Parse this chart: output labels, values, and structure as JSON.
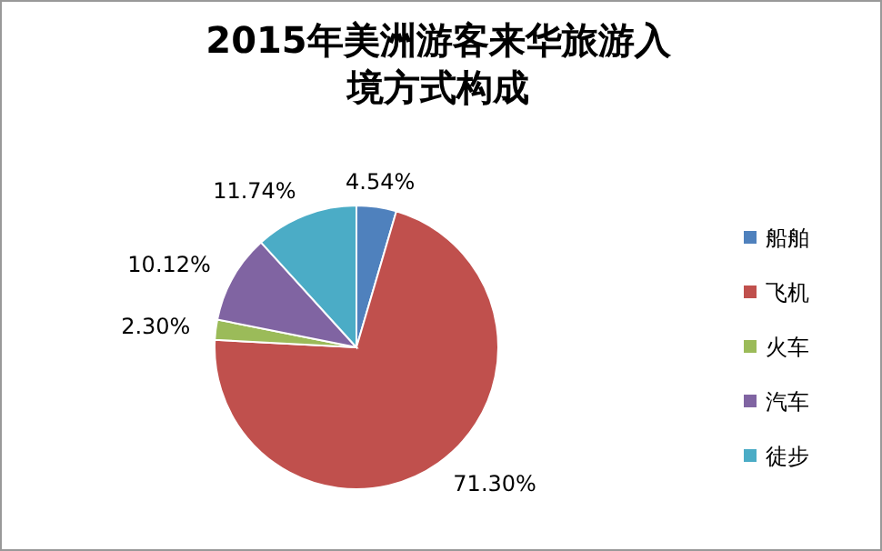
{
  "chart_data": {
    "type": "pie",
    "title": "2015年美洲游客来华旅游入境方式构成",
    "categories": [
      "船舶",
      "飞机",
      "火车",
      "汽车",
      "徒步"
    ],
    "values": [
      4.54,
      71.3,
      2.3,
      10.12,
      11.74
    ],
    "value_labels": [
      "4.54%",
      "71.30%",
      "2.30%",
      "10.12%",
      "11.74%"
    ],
    "colors": [
      "#4f81bd",
      "#c0504d",
      "#9bbb59",
      "#8064a2",
      "#4bacc6"
    ],
    "legend": "right"
  }
}
